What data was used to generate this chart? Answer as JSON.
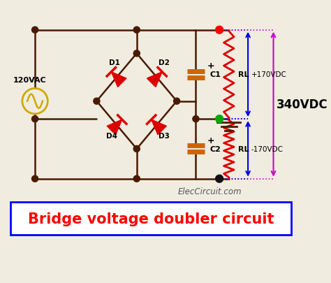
{
  "bg_color": "#f0ece0",
  "title_text": "Bridge voltage doubler circuit",
  "title_color": "#ff0000",
  "title_fontsize": 15,
  "title_box_color": "#0000ff",
  "watermark": "ElecCircuit.com",
  "wire_color": "#4a1a00",
  "wire_lw": 1.8,
  "node_color": "#4a1a00",
  "diode_color": "#dd0000",
  "cap_color": "#cc6600",
  "resistor_color": "#dd0000",
  "resistor_lw": 2.0,
  "dot_pos_color": "#ff0000",
  "dot_neg_color": "#111111",
  "dot_mid_color": "#00aa00",
  "label_120vac": "120VAC",
  "label_c1": "C1",
  "label_c2": "C2",
  "label_rl1": "RL",
  "label_rl2": "RL",
  "label_d1": "D1",
  "label_d2": "D2",
  "label_d3": "D3",
  "label_d4": "D4",
  "label_plus170": "+170VDC",
  "label_minus170": "-170VDC",
  "label_340vdc": "340VDC"
}
